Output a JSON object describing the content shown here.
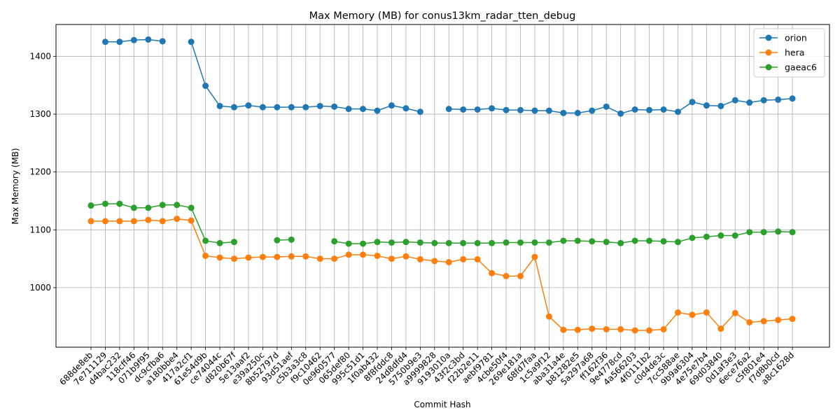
{
  "chart_data": {
    "type": "line",
    "title": "Max Memory (MB) for conus13km_radar_tten_debug",
    "xlabel": "Commit Hash",
    "ylabel": "Max Memory (MB)",
    "ylim": [
      897,
      1455
    ],
    "yticks": [
      1000,
      1100,
      1200,
      1300,
      1400
    ],
    "grid": true,
    "legend_position": "top-right",
    "categories": [
      "688de8eb",
      "7e711129",
      "d4bac232",
      "118cff46",
      "071b9f95",
      "dc9cfba6",
      "a180bbe4",
      "417a2cf1",
      "61e54d9b",
      "ce74044c",
      "d820b67f",
      "5e13aaf2",
      "e39a250c",
      "8b52797d",
      "93d51aef",
      "c5b3a3c8",
      "f9c10462",
      "0e960577",
      "065def80",
      "995c51d1",
      "1f0ab432",
      "8f8fddc8",
      "24d8dfd4",
      "5750b9e3",
      "a9999828",
      "9193010a",
      "43f2c3bd",
      "f22b2e11",
      "aebf9781",
      "4cbe50f4",
      "269e181a",
      "68fd7faa",
      "1c5a9f12",
      "aba31a4e",
      "b81282e5",
      "5a297a68",
      "ff162f36",
      "9e4778cd",
      "4a566203",
      "4f0111b2",
      "c0d4de3c",
      "7cc588ae",
      "9b9a6304",
      "4e75e7b4",
      "69d03840",
      "0d1af3e3",
      "6ece76a2",
      "c5f801e4",
      "f7d8b0cd",
      "a8c1628d"
    ],
    "series": [
      {
        "name": "orion",
        "color": "#1f77b4",
        "values": [
          null,
          1425,
          1425,
          1428,
          1429,
          1426,
          null,
          1425,
          1349,
          1314,
          1312,
          1315,
          1312,
          1312,
          1312,
          1312,
          1314,
          1313,
          1309,
          1309,
          1306,
          1315,
          1310,
          1304,
          null,
          1309,
          1308,
          1308,
          1310,
          1307,
          1307,
          1306,
          1306,
          1302,
          1302,
          1306,
          1313,
          1301,
          1308,
          1307,
          1308,
          1304,
          1321,
          1315,
          1314,
          1324,
          1320,
          1324,
          1325,
          1327
        ]
      },
      {
        "name": "hera",
        "color": "#ff7f0e",
        "values": [
          1115,
          1115,
          1115,
          1115,
          1117,
          1115,
          1119,
          1116,
          1055,
          1052,
          1050,
          1052,
          1053,
          1053,
          1054,
          1054,
          1050,
          1050,
          1057,
          1057,
          1055,
          1050,
          1054,
          1049,
          1046,
          1044,
          1049,
          1049,
          1025,
          1020,
          1020,
          1053,
          950,
          927,
          927,
          929,
          928,
          928,
          926,
          926,
          928,
          957,
          953,
          957,
          929,
          956,
          940,
          942,
          944,
          946
        ]
      },
      {
        "name": "gaeac6",
        "color": "#2ca02c",
        "values": [
          1142,
          1145,
          1145,
          1138,
          1138,
          1143,
          1143,
          1138,
          1081,
          1077,
          1079,
          null,
          null,
          1082,
          1083,
          null,
          null,
          1080,
          1076,
          1076,
          1079,
          1078,
          1079,
          1078,
          1077,
          1077,
          1077,
          1077,
          1077,
          1078,
          1078,
          1078,
          1078,
          1081,
          1081,
          1080,
          1079,
          1077,
          1081,
          1081,
          1080,
          1079,
          1086,
          1088,
          1090,
          1090,
          1096,
          1096,
          1097,
          1096
        ]
      }
    ]
  }
}
